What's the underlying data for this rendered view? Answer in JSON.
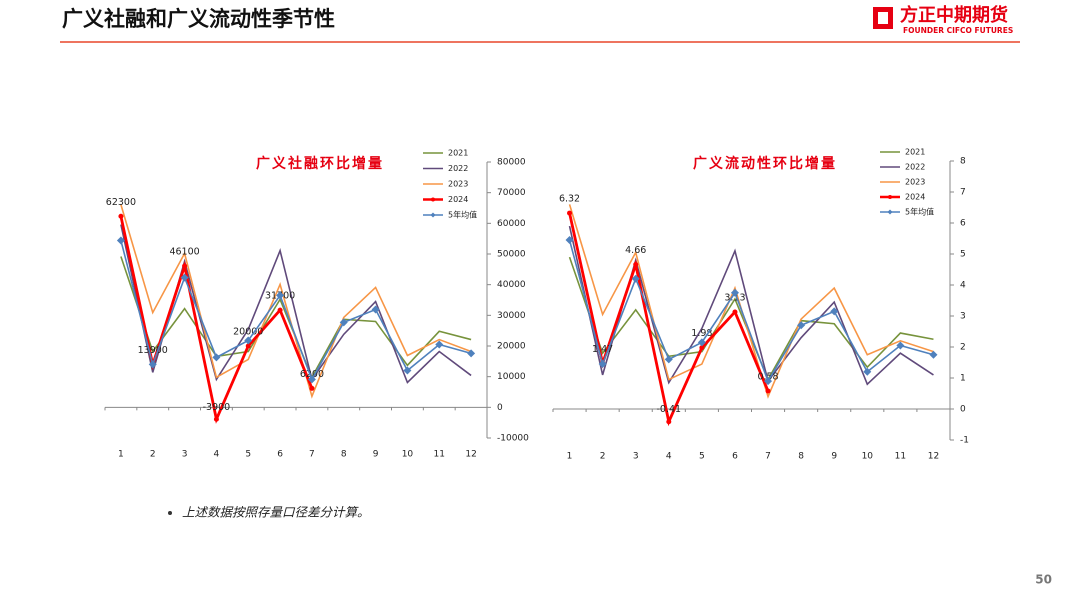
{
  "header": {
    "title": "广义社融和广义流动性季节性",
    "logo_name": "方正中期期货",
    "logo_subtitle": "FOUNDER CIFCO FUTURES"
  },
  "chart_data": [
    {
      "type": "line",
      "title": "广义社融环比增量",
      "categories": [
        "1",
        "2",
        "3",
        "4",
        "5",
        "6",
        "7",
        "8",
        "9",
        "10",
        "11",
        "12"
      ],
      "ylim": [
        -10000,
        80000
      ],
      "yticks": [
        80000,
        70000,
        60000,
        50000,
        40000,
        30000,
        20000,
        10000,
        0,
        -10000
      ],
      "series": [
        {
          "name": "2021",
          "color": "#77933c",
          "values": [
            49200,
            18200,
            32200,
            16600,
            18200,
            35200,
            9800,
            28700,
            28000,
            13700,
            24800,
            22100
          ]
        },
        {
          "name": "2022",
          "color": "#604a7b",
          "values": [
            59600,
            11400,
            47600,
            9100,
            25400,
            51100,
            9100,
            23800,
            34500,
            8100,
            18200,
            10400
          ]
        },
        {
          "name": "2023",
          "color": "#f79646",
          "values": [
            66100,
            30900,
            50200,
            9800,
            15600,
            40100,
            3600,
            29300,
            39100,
            16900,
            22100,
            18200
          ]
        },
        {
          "name": "2024",
          "color": "#ff0000",
          "marker": "circle",
          "show_labels": true,
          "values": [
            62300,
            13900,
            46100,
            -3900,
            20000,
            31700,
            6200,
            null,
            null,
            null,
            null,
            null
          ]
        },
        {
          "name": "5年均值",
          "color": "#4f81bd",
          "marker": "diamond",
          "values": [
            54400,
            14000,
            42300,
            16300,
            21800,
            36500,
            9100,
            27700,
            31900,
            12000,
            20500,
            17600
          ]
        }
      ]
    },
    {
      "type": "line",
      "title": "广义流动性环比增量",
      "categories": [
        "1",
        "2",
        "3",
        "4",
        "5",
        "6",
        "7",
        "8",
        "9",
        "10",
        "11",
        "12"
      ],
      "ylim": [
        -1,
        8
      ],
      "yticks": [
        8,
        7,
        6,
        5,
        4,
        3,
        2,
        1,
        0,
        -1
      ],
      "series": [
        {
          "name": "2021",
          "color": "#77933c",
          "values": [
            4.9,
            1.8,
            3.2,
            1.7,
            1.85,
            3.55,
            0.95,
            2.85,
            2.75,
            1.35,
            2.45,
            2.25
          ]
        },
        {
          "name": "2022",
          "color": "#604a7b",
          "values": [
            5.9,
            1.1,
            4.8,
            0.85,
            2.6,
            5.1,
            0.9,
            2.3,
            3.45,
            0.8,
            1.8,
            1.1
          ]
        },
        {
          "name": "2023",
          "color": "#f79646",
          "values": [
            6.6,
            3.05,
            5.05,
            0.95,
            1.45,
            3.9,
            0.4,
            2.9,
            3.9,
            1.75,
            2.2,
            1.85
          ]
        },
        {
          "name": "2024",
          "color": "#ff0000",
          "marker": "circle",
          "show_labels": true,
          "values": [
            6.32,
            1.47,
            4.66,
            -0.41,
            1.98,
            3.13,
            0.58,
            null,
            null,
            null,
            null,
            null
          ]
        },
        {
          "name": "5年均值",
          "color": "#4f81bd",
          "marker": "diamond",
          "values": [
            5.45,
            1.45,
            4.2,
            1.6,
            2.15,
            3.75,
            0.9,
            2.7,
            3.15,
            1.2,
            2.05,
            1.75
          ]
        }
      ]
    }
  ],
  "footnote": "上述数据按照存量口径差分计算。",
  "page_number": "50"
}
